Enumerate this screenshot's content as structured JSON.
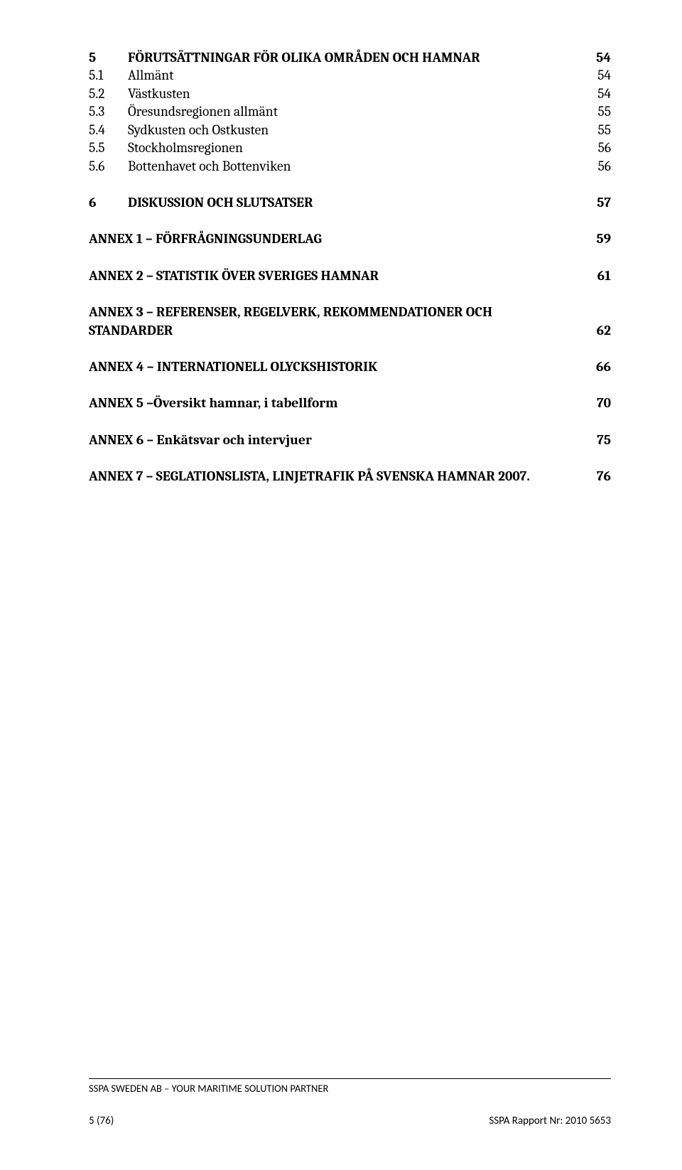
{
  "toc": {
    "section5": {
      "num": "5",
      "title": "FÖRUTSÄTTNINGAR FÖR OLIKA OMRÅDEN OCH HAMNAR",
      "page": "54",
      "items": [
        {
          "num": "5.1",
          "title": "Allmänt",
          "page": "54"
        },
        {
          "num": "5.2",
          "title": "Västkusten",
          "page": "54"
        },
        {
          "num": "5.3",
          "title": "Öresundsregionen allmänt",
          "page": "55"
        },
        {
          "num": "5.4",
          "title": "Sydkusten och Ostkusten",
          "page": "55"
        },
        {
          "num": "5.5",
          "title": "Stockholmsregionen",
          "page": "56"
        },
        {
          "num": "5.6",
          "title": "Bottenhavet och Bottenviken",
          "page": "56"
        }
      ]
    },
    "section6": {
      "num": "6",
      "title": "DISKUSSION OCH SLUTSATSER",
      "page": "57"
    },
    "annex1": {
      "title": "ANNEX 1 – FÖRFRÅGNINGSUNDERLAG",
      "page": "59"
    },
    "annex2": {
      "title": "ANNEX 2 – STATISTIK ÖVER SVERIGES HAMNAR",
      "page": "61"
    },
    "annex3": {
      "title_line1": "ANNEX 3 – REFERENSER, REGELVERK, REKOMMENDATIONER OCH",
      "title_line2": "STANDARDER",
      "page": "62"
    },
    "annex4": {
      "title": "ANNEX 4 – INTERNATIONELL OLYCKSHISTORIK",
      "page": "66"
    },
    "annex5": {
      "title": "ANNEX 5 –Översikt hamnar, i tabellform",
      "page": "70"
    },
    "annex6": {
      "title": "ANNEX 6 – Enkätsvar och intervjuer",
      "page": "75"
    },
    "annex7": {
      "title": "ANNEX 7 – SEGLATIONSLISTA,  LINJETRAFIK PÅ SVENSKA HAMNAR 2007. ",
      "page": "76"
    }
  },
  "footer": {
    "company_line": "SSPA SWEDEN AB – YOUR MARITIME SOLUTION PARTNER",
    "page_indicator": "5 (76)",
    "report_ref": "SSPA Rapport Nr: 2010 5653"
  }
}
